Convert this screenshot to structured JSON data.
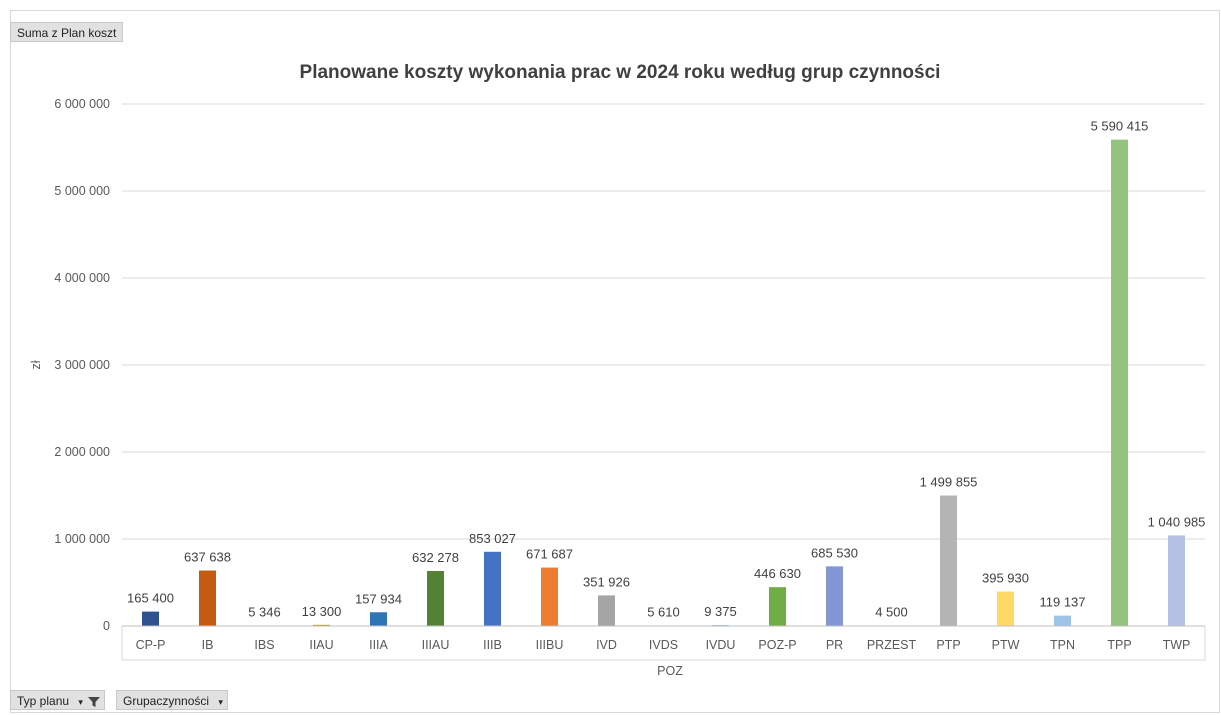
{
  "pivot": {
    "value_field": "Suma z Plan koszt",
    "filter_fields": [
      "Typ planu",
      "Grupaczynności"
    ]
  },
  "chart_data": {
    "type": "bar",
    "title": "Planowane koszty wykonania prac w 2024 roku według grup czynności",
    "ylabel": "zł",
    "xlabel": "POZ",
    "ylim": [
      0,
      6000000
    ],
    "yticks": [
      0,
      1000000,
      2000000,
      3000000,
      4000000,
      5000000,
      6000000
    ],
    "ytick_labels": [
      "0",
      "1 000 000",
      "2 000 000",
      "3 000 000",
      "4 000 000",
      "5 000 000",
      "6 000 000"
    ],
    "grid": true,
    "categories": [
      "CP-P",
      "IB",
      "IBS",
      "IIAU",
      "IIIA",
      "IIIAU",
      "IIIB",
      "IIIBU",
      "IVD",
      "IVDS",
      "IVDU",
      "POZ-P",
      "PR",
      "PRZEST",
      "PTP",
      "PTW",
      "TPN",
      "TPP",
      "TWP"
    ],
    "values": [
      165400,
      637638,
      5346,
      13300,
      157934,
      632278,
      853027,
      671687,
      351926,
      5610,
      9375,
      446630,
      685530,
      4500,
      1499855,
      395930,
      119137,
      5590415,
      1040985
    ],
    "data_labels": [
      "165 400",
      "637 638",
      "5 346",
      "13 300",
      "157 934",
      "632 278",
      "853 027",
      "671 687",
      "351 926",
      "5 610",
      "9 375",
      "446 630",
      "685 530",
      "4 500",
      "1 499 855",
      "395 930",
      "119 137",
      "5 590 415",
      "1 040 985"
    ],
    "colors": [
      "#2f528f",
      "#c55a11",
      "#7f7f7f",
      "#bf9000",
      "#2e75b6",
      "#548235",
      "#4472c4",
      "#ed7d31",
      "#a5a5a5",
      "#ffc000",
      "#5b9bd5",
      "#70ad47",
      "#8497d4",
      "#f4b183",
      "#b4b4b4",
      "#ffd966",
      "#9dc3e6",
      "#93c47d",
      "#b4c0e4"
    ]
  }
}
